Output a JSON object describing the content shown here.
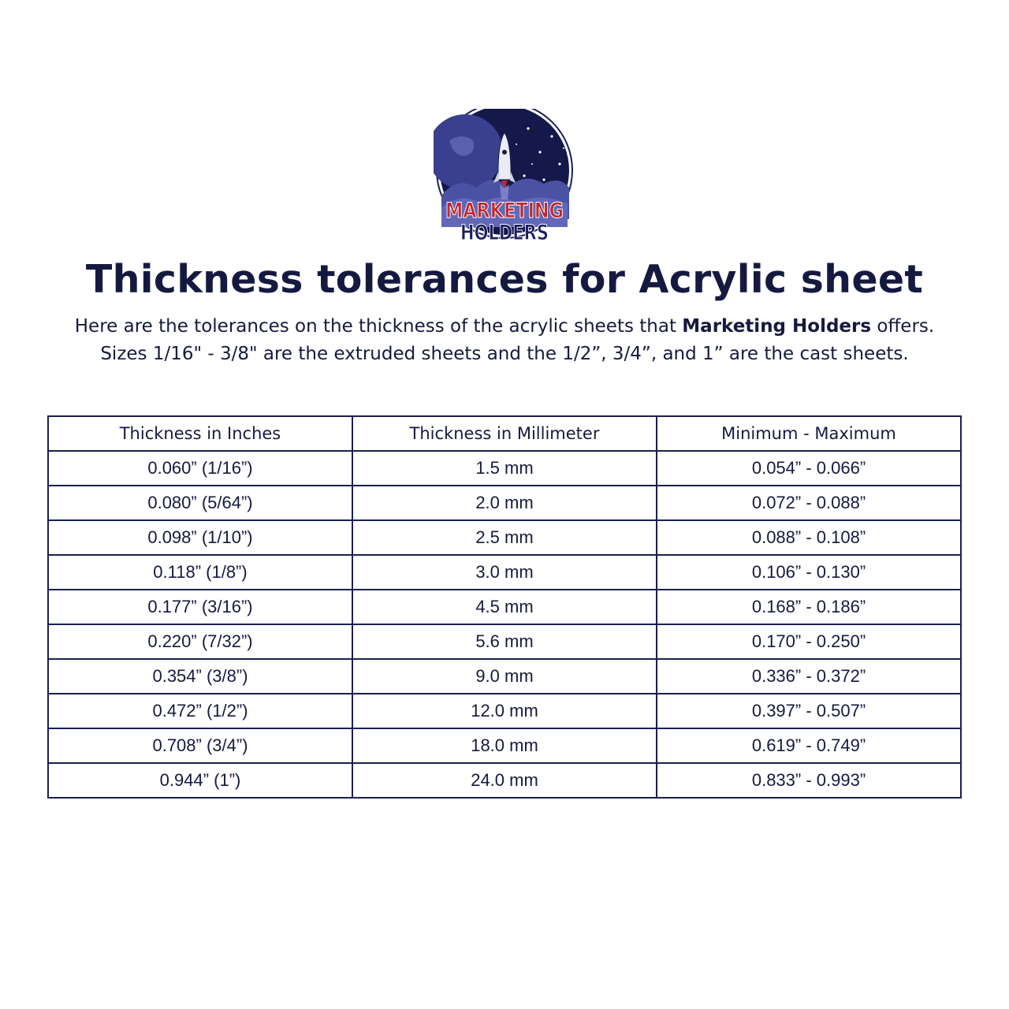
{
  "logo": {
    "line1": "MARKETING",
    "line2": "HOLDERS",
    "colors": {
      "navy": "#1b1f5e",
      "red": "#c1272d"
    }
  },
  "title": "Thickness tolerances for Acrylic sheet",
  "subtitle": {
    "line1_pre": "Here are the tolerances on the thickness of the acrylic sheets that ",
    "line1_bold": "Marketing Holders",
    "line1_post": " offers.",
    "line2": "Sizes 1/16\" - 3/8\" are the extruded sheets and the 1/2”, 3/4”, and 1” are the cast sheets."
  },
  "table": {
    "headers": [
      "Thickness in Inches",
      "Thickness in Millimeter",
      "Minimum - Maximum"
    ],
    "rows": [
      [
        "0.060” (1/16”)",
        "1.5 mm",
        "0.054” - 0.066”"
      ],
      [
        "0.080” (5/64”)",
        "2.0 mm",
        "0.072” - 0.088”"
      ],
      [
        "0.098” (1/10”)",
        "2.5 mm",
        "0.088” - 0.108”"
      ],
      [
        "0.118” (1/8”)",
        "3.0 mm",
        "0.106” - 0.130”"
      ],
      [
        "0.177” (3/16”)",
        "4.5 mm",
        "0.168” - 0.186”"
      ],
      [
        "0.220” (7/32”)",
        "5.6 mm",
        "0.170” - 0.250”"
      ],
      [
        "0.354” (3/8”)",
        "9.0 mm",
        "0.336” - 0.372”"
      ],
      [
        "0.472” (1/2”)",
        "12.0 mm",
        "0.397” - 0.507”"
      ],
      [
        "0.708” (3/4”)",
        "18.0 mm",
        "0.619” - 0.749”"
      ],
      [
        "0.944” (1”)",
        "24.0 mm",
        "0.833” - 0.993”"
      ]
    ]
  }
}
